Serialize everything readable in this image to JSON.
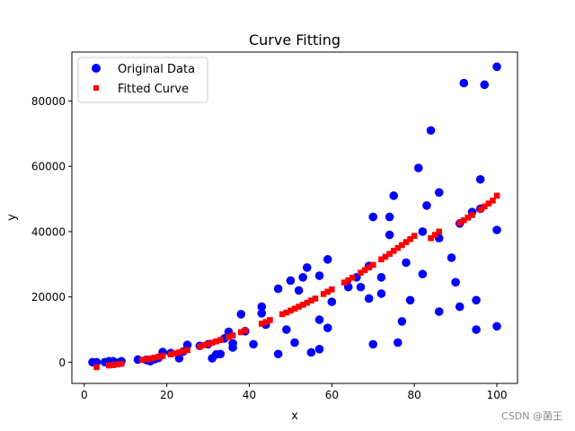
{
  "chart_data": {
    "type": "scatter",
    "title": "Curve Fitting",
    "xlabel": "x",
    "ylabel": "y",
    "xlim": [
      -3,
      105
    ],
    "ylim": [
      -6500,
      95000
    ],
    "x_ticks": [
      0,
      20,
      40,
      60,
      80,
      100
    ],
    "y_ticks": [
      0,
      20000,
      40000,
      60000,
      80000
    ],
    "x_tick_labels": [
      "0",
      "20",
      "40",
      "60",
      "80",
      "100"
    ],
    "y_tick_labels": [
      "0",
      "20000",
      "40000",
      "60000",
      "80000"
    ],
    "legend": {
      "position": "upper-left"
    },
    "grid": false,
    "series": [
      {
        "name": "Original Data",
        "marker": "circle",
        "color": "#0000ff",
        "points": [
          [
            2,
            0
          ],
          [
            3,
            0
          ],
          [
            5,
            0
          ],
          [
            6,
            300
          ],
          [
            7,
            300
          ],
          [
            8,
            -200
          ],
          [
            9,
            300
          ],
          [
            13,
            800
          ],
          [
            15,
            700
          ],
          [
            16,
            300
          ],
          [
            17,
            900
          ],
          [
            18,
            1300
          ],
          [
            19,
            3100
          ],
          [
            21,
            2800
          ],
          [
            23,
            1200
          ],
          [
            24,
            3300
          ],
          [
            25,
            5300
          ],
          [
            28,
            5000
          ],
          [
            30,
            5500
          ],
          [
            31,
            1200
          ],
          [
            32,
            2400
          ],
          [
            33,
            2500
          ],
          [
            34,
            7300
          ],
          [
            35,
            9300
          ],
          [
            36,
            4500
          ],
          [
            36,
            5800
          ],
          [
            38,
            14700
          ],
          [
            39,
            9500
          ],
          [
            41,
            5500
          ],
          [
            43,
            17000
          ],
          [
            43,
            15000
          ],
          [
            44,
            11500
          ],
          [
            47,
            2500
          ],
          [
            47,
            22500
          ],
          [
            49,
            10000
          ],
          [
            50,
            25000
          ],
          [
            51,
            6000
          ],
          [
            52,
            22000
          ],
          [
            53,
            26000
          ],
          [
            54,
            29000
          ],
          [
            55,
            3000
          ],
          [
            57,
            26500
          ],
          [
            57,
            4000
          ],
          [
            57,
            13000
          ],
          [
            59,
            31500
          ],
          [
            59,
            10500
          ],
          [
            60,
            18500
          ],
          [
            64,
            23000
          ],
          [
            66,
            26000
          ],
          [
            67,
            23000
          ],
          [
            69,
            19500
          ],
          [
            69,
            29500
          ],
          [
            70,
            44500
          ],
          [
            70,
            5500
          ],
          [
            72,
            21000
          ],
          [
            72,
            26000
          ],
          [
            74,
            44500
          ],
          [
            74,
            39000
          ],
          [
            75,
            51000
          ],
          [
            76,
            6000
          ],
          [
            77,
            12500
          ],
          [
            78,
            30500
          ],
          [
            79,
            19000
          ],
          [
            81,
            59500
          ],
          [
            82,
            40000
          ],
          [
            82,
            27000
          ],
          [
            83,
            48000
          ],
          [
            84,
            71000
          ],
          [
            86,
            52000
          ],
          [
            86,
            15500
          ],
          [
            86,
            38000
          ],
          [
            89,
            32000
          ],
          [
            90,
            24500
          ],
          [
            91,
            42500
          ],
          [
            91,
            17000
          ],
          [
            92,
            85500
          ],
          [
            94,
            46000
          ],
          [
            95,
            19000
          ],
          [
            95,
            10000
          ],
          [
            96,
            56000
          ],
          [
            96,
            47000
          ],
          [
            97,
            85000
          ],
          [
            100,
            90500
          ],
          [
            100,
            40500
          ],
          [
            100,
            11000
          ]
        ]
      },
      {
        "name": "Fitted Curve",
        "marker": "square",
        "color": "#ff0000",
        "points": [
          [
            3,
            -1500
          ],
          [
            6,
            -1000
          ],
          [
            7,
            -900
          ],
          [
            8,
            -700
          ],
          [
            9,
            -500
          ],
          [
            14,
            700
          ],
          [
            15,
            900
          ],
          [
            16,
            1100
          ],
          [
            17,
            1400
          ],
          [
            18,
            1600
          ],
          [
            19,
            1900
          ],
          [
            21,
            2400
          ],
          [
            22,
            2700
          ],
          [
            23,
            3000
          ],
          [
            24,
            3400
          ],
          [
            25,
            3700
          ],
          [
            28,
            4800
          ],
          [
            29,
            5200
          ],
          [
            30,
            5600
          ],
          [
            31,
            6000
          ],
          [
            32,
            6400
          ],
          [
            33,
            6800
          ],
          [
            35,
            7700
          ],
          [
            36,
            8200
          ],
          [
            38,
            9200
          ],
          [
            39,
            9700
          ],
          [
            43,
            11800
          ],
          [
            44,
            12300
          ],
          [
            45,
            12900
          ],
          [
            48,
            14700
          ],
          [
            49,
            15200
          ],
          [
            50,
            15800
          ],
          [
            51,
            16400
          ],
          [
            52,
            17000
          ],
          [
            53,
            17600
          ],
          [
            54,
            18200
          ],
          [
            55,
            18900
          ],
          [
            56,
            19500
          ],
          [
            58,
            20900
          ],
          [
            59,
            21600
          ],
          [
            60,
            22300
          ],
          [
            63,
            24400
          ],
          [
            64,
            25100
          ],
          [
            65,
            25900
          ],
          [
            67,
            27400
          ],
          [
            68,
            28200
          ],
          [
            69,
            29000
          ],
          [
            70,
            29800
          ],
          [
            72,
            31500
          ],
          [
            73,
            32300
          ],
          [
            74,
            33200
          ],
          [
            75,
            34100
          ],
          [
            76,
            35000
          ],
          [
            77,
            35900
          ],
          [
            78,
            36800
          ],
          [
            79,
            37700
          ],
          [
            80,
            38700
          ],
          [
            84,
            38000
          ],
          [
            85,
            39000
          ],
          [
            86,
            40000
          ],
          [
            91,
            42700
          ],
          [
            92,
            43500
          ],
          [
            93,
            44300
          ],
          [
            94,
            45100
          ],
          [
            96,
            46800
          ],
          [
            97,
            47700
          ],
          [
            98,
            48600
          ],
          [
            99,
            49500
          ],
          [
            100,
            51000
          ]
        ]
      }
    ]
  },
  "watermark": "CSDN @菌王"
}
